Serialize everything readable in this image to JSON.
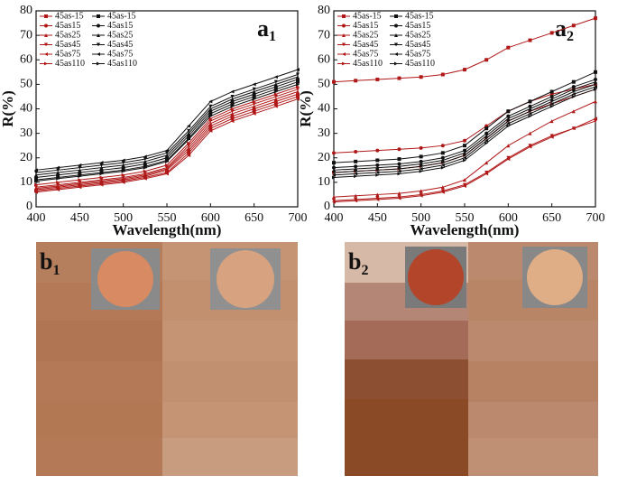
{
  "chart_data": [
    {
      "type": "line",
      "panel_label": "a",
      "panel_subscript": "1",
      "x_label": "Wavelength(nm)",
      "y_label": "R(%)",
      "x": [
        400,
        425,
        450,
        475,
        500,
        525,
        550,
        575,
        600,
        625,
        650,
        675,
        700
      ],
      "xlim": [
        400,
        700
      ],
      "xticks": [
        400,
        450,
        500,
        550,
        600,
        650,
        700
      ],
      "ylim": [
        0,
        80
      ],
      "yticks": [
        0,
        10,
        20,
        30,
        40,
        50,
        60,
        70,
        80
      ],
      "legend": "top-left",
      "series": [
        {
          "name": "45as-15",
          "color": "#b01818",
          "marker": "square",
          "values": [
            6.5,
            7.5,
            8.5,
            9.5,
            10.5,
            12,
            14,
            22,
            32,
            36,
            39,
            42,
            45
          ]
        },
        {
          "name": "45as15",
          "color": "#b01818",
          "marker": "circle",
          "values": [
            7,
            8,
            9,
            10,
            11,
            12.5,
            15,
            23,
            33,
            37,
            40,
            43,
            46
          ]
        },
        {
          "name": "45as25",
          "color": "#b01818",
          "marker": "triangle",
          "values": [
            7.5,
            8.5,
            9.5,
            10.5,
            11.5,
            13,
            15.5,
            24,
            34,
            38,
            41,
            44,
            47
          ]
        },
        {
          "name": "45as45",
          "color": "#b01818",
          "marker": "triangle-down",
          "values": [
            8,
            9,
            10,
            11,
            12,
            13.5,
            16,
            25,
            35,
            39,
            42,
            45,
            48
          ]
        },
        {
          "name": "45as75",
          "color": "#b01818",
          "marker": "triangle-left",
          "values": [
            6,
            7,
            8,
            9,
            10,
            11.5,
            13.5,
            21,
            31,
            35,
            38,
            41,
            44
          ]
        },
        {
          "name": "45as110",
          "color": "#b01818",
          "marker": "triangle-right",
          "values": [
            9,
            10,
            11,
            12,
            13,
            14.5,
            17,
            26,
            36,
            40,
            43,
            46,
            49
          ]
        },
        {
          "name": "45as-15",
          "color": "#111111",
          "marker": "square",
          "values": [
            11,
            12,
            13,
            14,
            15,
            16.5,
            19,
            28,
            38,
            42,
            45,
            48,
            51
          ]
        },
        {
          "name": "45as15",
          "color": "#111111",
          "marker": "circle",
          "values": [
            12,
            13,
            14,
            15,
            16,
            17.5,
            20,
            29,
            39,
            43,
            46,
            49,
            52
          ]
        },
        {
          "name": "45as25",
          "color": "#111111",
          "marker": "triangle",
          "values": [
            13,
            14,
            15,
            16,
            17,
            18.5,
            21,
            30,
            40,
            44,
            47,
            50,
            53
          ]
        },
        {
          "name": "45as45",
          "color": "#111111",
          "marker": "triangle-down",
          "values": [
            14,
            15,
            16,
            17,
            18,
            19.5,
            22,
            31,
            41,
            45,
            48,
            51,
            54
          ]
        },
        {
          "name": "45as75",
          "color": "#111111",
          "marker": "triangle-left",
          "values": [
            15,
            16,
            17,
            18,
            19,
            20.5,
            23,
            33,
            43,
            47,
            50,
            53,
            56
          ]
        },
        {
          "name": "45as110",
          "color": "#111111",
          "marker": "triangle-right",
          "values": [
            10.5,
            11.5,
            12.5,
            13.5,
            14.5,
            16,
            18.5,
            27.5,
            37,
            41,
            44,
            47,
            50
          ]
        }
      ]
    },
    {
      "type": "line",
      "panel_label": "a",
      "panel_subscript": "2",
      "x_label": "Wavelength(nm)",
      "y_label": "R(%)",
      "x": [
        400,
        425,
        450,
        475,
        500,
        525,
        550,
        575,
        600,
        625,
        650,
        675,
        700
      ],
      "xlim": [
        400,
        700
      ],
      "xticks": [
        400,
        450,
        500,
        550,
        600,
        650,
        700
      ],
      "ylim": [
        0,
        80
      ],
      "yticks": [
        0,
        10,
        20,
        30,
        40,
        50,
        60,
        70,
        80
      ],
      "legend": "top-left",
      "series": [
        {
          "name": "45as-15",
          "color": "#b01818",
          "marker": "square",
          "values": [
            51,
            51.5,
            52,
            52.5,
            53,
            54,
            56,
            60,
            65,
            68,
            71,
            74,
            77
          ]
        },
        {
          "name": "45as15",
          "color": "#b01818",
          "marker": "circle",
          "values": [
            22,
            22.5,
            23,
            23.5,
            24,
            25,
            27,
            33,
            39,
            43,
            46,
            48,
            50
          ]
        },
        {
          "name": "45as25",
          "color": "#b01818",
          "marker": "triangle",
          "values": [
            4,
            4.5,
            5,
            5.5,
            6.5,
            8,
            11,
            18,
            25,
            30,
            35,
            39,
            43
          ]
        },
        {
          "name": "45as45",
          "color": "#b01818",
          "marker": "triangle-down",
          "values": [
            2.5,
            3,
            3.5,
            4,
            5,
            6.5,
            9,
            14,
            20,
            25,
            29,
            32,
            35
          ]
        },
        {
          "name": "45as75",
          "color": "#b01818",
          "marker": "triangle-left",
          "values": [
            2,
            2.5,
            3,
            3.5,
            4.5,
            6,
            8.5,
            13.5,
            19.5,
            24.5,
            28.5,
            32,
            36
          ]
        },
        {
          "name": "45as110",
          "color": "#b01818",
          "marker": "triangle-right",
          "values": [
            14,
            14.5,
            15,
            15.5,
            16.5,
            18,
            21,
            28,
            35,
            39,
            42,
            45,
            48
          ]
        },
        {
          "name": "45as-15",
          "color": "#111111",
          "marker": "square",
          "values": [
            18,
            18.5,
            19,
            19.5,
            20.5,
            22,
            25,
            32,
            39,
            43,
            47,
            51,
            55
          ]
        },
        {
          "name": "45as15",
          "color": "#111111",
          "marker": "circle",
          "values": [
            16,
            16.5,
            17,
            17.5,
            18.5,
            20,
            23,
            30,
            37,
            41,
            45,
            49,
            52
          ]
        },
        {
          "name": "45as25",
          "color": "#111111",
          "marker": "triangle",
          "values": [
            15,
            15.5,
            16,
            16.5,
            17.5,
            19,
            22,
            29,
            36,
            40,
            44,
            48,
            51
          ]
        },
        {
          "name": "45as45",
          "color": "#111111",
          "marker": "triangle-down",
          "values": [
            14,
            14.5,
            15,
            15.5,
            16.5,
            18,
            21,
            28,
            35,
            39,
            43,
            47,
            50
          ]
        },
        {
          "name": "45as75",
          "color": "#111111",
          "marker": "triangle-left",
          "values": [
            13,
            13.5,
            14,
            14.5,
            15.5,
            17,
            20,
            27,
            34,
            38,
            42,
            46,
            49
          ]
        },
        {
          "name": "45as110",
          "color": "#111111",
          "marker": "triangle-right",
          "values": [
            12,
            12.5,
            13,
            13.5,
            14.5,
            16,
            19,
            26,
            33,
            37,
            41,
            45,
            48
          ]
        }
      ]
    }
  ],
  "image_panels": [
    {
      "label": "b",
      "subscript": "1"
    },
    {
      "label": "b",
      "subscript": "2"
    }
  ]
}
